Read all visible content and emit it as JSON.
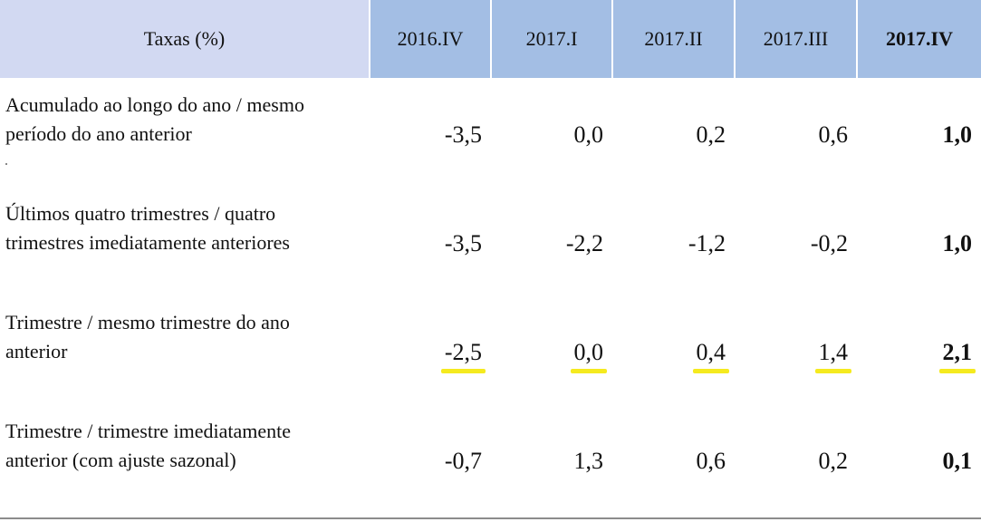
{
  "table": {
    "header": {
      "label": "Taxas (%)",
      "periods": [
        "2016.IV",
        "2017.I",
        "2017.II",
        "2017.III",
        "2017.IV"
      ]
    },
    "rows": [
      {
        "label_line1": "Acumulado ao longo do ano / mesmo",
        "label_line2": "período do ano anterior",
        "values": [
          "-3,5",
          "0,0",
          "0,2",
          "0,6",
          "1,0"
        ],
        "highlighted": false
      },
      {
        "label_line1": "Últimos quatro trimestres / quatro",
        "label_line2": "trimestres imediatamente anteriores",
        "values": [
          "-3,5",
          "-2,2",
          "-1,2",
          "-0,2",
          "1,0"
        ],
        "highlighted": false
      },
      {
        "label_line1": "Trimestre / mesmo trimestre do ano",
        "label_line2": "anterior",
        "values": [
          "-2,5",
          "0,0",
          "0,4",
          "1,4",
          "2,1"
        ],
        "highlighted": true
      },
      {
        "label_line1": "Trimestre / trimestre imediatamente",
        "label_line2": "anterior (com ajuste sazonal)",
        "values": [
          "-0,7",
          "1,3",
          "0,6",
          "0,2",
          "0,1"
        ],
        "highlighted": false
      }
    ]
  },
  "colors": {
    "label_header_bg": "#d2d9f2",
    "period_header_bg": "#a3bee4",
    "highlight_underline": "#f5ea1f"
  }
}
